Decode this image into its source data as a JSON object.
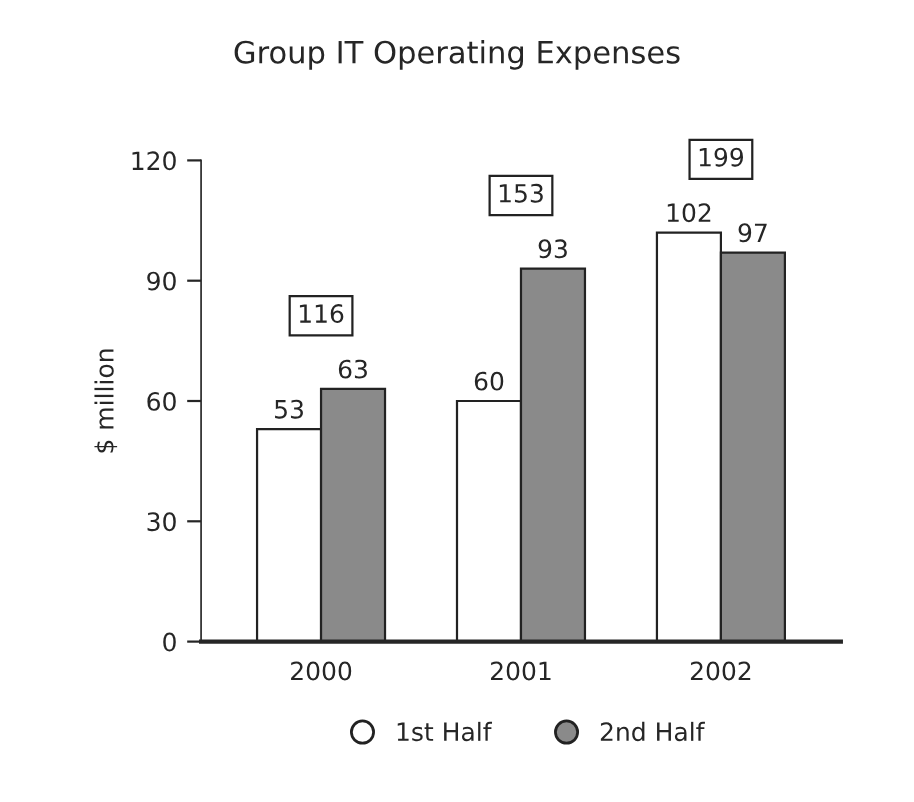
{
  "chart_data": {
    "type": "bar",
    "title": "Group IT Operating Expenses",
    "ylabel": "$ million",
    "categories": [
      "2000",
      "2001",
      "2002"
    ],
    "series": [
      {
        "name": "1st Half",
        "color": "#ffffff",
        "values": [
          53,
          60,
          102
        ]
      },
      {
        "name": "2nd Half",
        "color": "#8a8a8a",
        "values": [
          63,
          93,
          97
        ]
      }
    ],
    "totals": [
      "116",
      "153",
      "199"
    ],
    "ylim": [
      0,
      120
    ],
    "yticks": [
      0,
      30,
      60,
      90,
      120
    ],
    "data_labels": true,
    "grid": false,
    "legend": "bottom"
  }
}
